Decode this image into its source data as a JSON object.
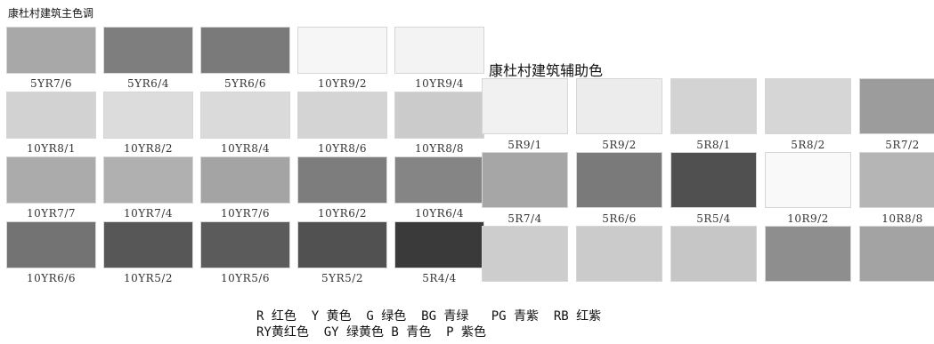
{
  "main": {
    "title": "康杜村建筑主色调",
    "swatches": [
      {
        "code": "5YR7/6",
        "color": "#a8a8a8"
      },
      {
        "code": "5YR6/4",
        "color": "#7e7e7e"
      },
      {
        "code": "5YR6/6",
        "color": "#7a7a7a"
      },
      {
        "code": "10YR9/2",
        "color": "#f6f6f6"
      },
      {
        "code": "10YR9/4",
        "color": "#f3f3f3"
      },
      {
        "code": "10YR8/1",
        "color": "#d2d2d2"
      },
      {
        "code": "10YR8/2",
        "color": "#dcdcdc"
      },
      {
        "code": "10YR8/4",
        "color": "#dadada"
      },
      {
        "code": "10YR8/6",
        "color": "#d4d4d4"
      },
      {
        "code": "10YR8/8",
        "color": "#cbcbcb"
      },
      {
        "code": "10YR7/7",
        "color": "#ababab"
      },
      {
        "code": "10YR7/4",
        "color": "#b0b0b0"
      },
      {
        "code": "10YR7/6",
        "color": "#a4a4a4"
      },
      {
        "code": "10YR6/2",
        "color": "#7d7d7d"
      },
      {
        "code": "10YR6/4",
        "color": "#858585"
      },
      {
        "code": "10YR6/6",
        "color": "#737373"
      },
      {
        "code": "10YR5/2",
        "color": "#575757"
      },
      {
        "code": "10YR5/6",
        "color": "#5b5b5b"
      },
      {
        "code": "5YR5/2",
        "color": "#515151"
      },
      {
        "code": "5R4/4",
        "color": "#3a3a3a"
      }
    ]
  },
  "aux": {
    "title": "康杜村建筑辅助色",
    "swatches": [
      {
        "code": "5R9/1",
        "color": "#f1f1f1"
      },
      {
        "code": "5R9/2",
        "color": "#ececec"
      },
      {
        "code": "5R8/1",
        "color": "#d3d3d3"
      },
      {
        "code": "5R8/2",
        "color": "#d6d6d6"
      },
      {
        "code": "5R7/2",
        "color": "#9c9c9c"
      },
      {
        "code": "5R7/4",
        "color": "#a6a6a6"
      },
      {
        "code": "5R6/6",
        "color": "#7a7a7a"
      },
      {
        "code": "5R5/4",
        "color": "#505050"
      },
      {
        "code": "10R9/2",
        "color": "#f9f9f9"
      },
      {
        "code": "10R8/8",
        "color": "#b5b5b5"
      },
      {
        "code": "",
        "color": "#cdcdcd"
      },
      {
        "code": "",
        "color": "#cbcbcb"
      },
      {
        "code": "",
        "color": "#c6c6c6"
      },
      {
        "code": "",
        "color": "#8e8e8e"
      },
      {
        "code": "",
        "color": "#a3a3a3"
      }
    ]
  },
  "legend": {
    "line1": "R 红色  Y 黄色  G 绿色  BG 青绿   PG 青紫  RB 红紫",
    "line2": "RY黄红色  GY 绿黄色 B 青色  P 紫色"
  }
}
